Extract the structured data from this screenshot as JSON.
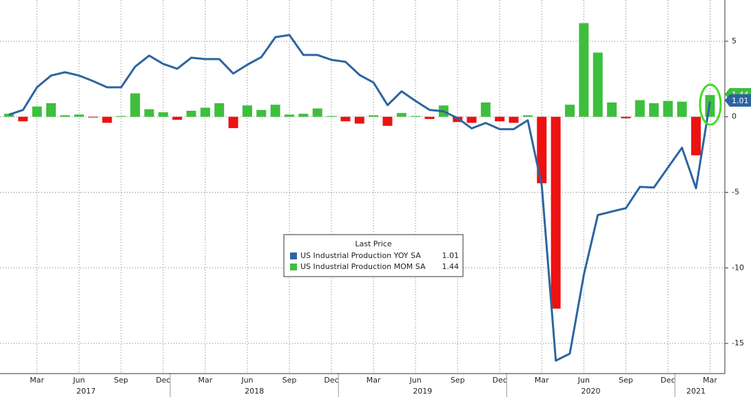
{
  "chart_data": {
    "type": "bar-line",
    "categories": [
      null,
      null,
      "Mar",
      null,
      null,
      "Jun",
      null,
      null,
      "Sep",
      null,
      null,
      "Dec",
      null,
      null,
      "Mar",
      null,
      null,
      "Jun",
      null,
      null,
      "Sep",
      null,
      null,
      "Dec",
      null,
      null,
      "Mar",
      null,
      null,
      "Jun",
      null,
      null,
      "Sep",
      null,
      null,
      "Dec",
      null,
      null,
      "Mar",
      null,
      null,
      "Jun",
      null,
      null,
      "Sep",
      null,
      null,
      "Dec",
      null,
      null,
      "Mar"
    ],
    "year_labels": [
      "2017",
      "2018",
      "2019",
      "2020",
      "2021"
    ],
    "legend_title": "Last Price",
    "series": [
      {
        "name": "US Industrial Production YOY SA",
        "type": "line",
        "color": "#2c65a0",
        "values": [
          0.14,
          0.45,
          1.95,
          2.73,
          2.95,
          2.73,
          2.36,
          1.95,
          1.95,
          3.32,
          4.05,
          3.5,
          3.18,
          3.91,
          3.82,
          3.82,
          2.86,
          3.45,
          3.95,
          5.27,
          5.41,
          4.09,
          4.09,
          3.77,
          3.64,
          2.77,
          2.27,
          0.77,
          1.68,
          1.05,
          0.45,
          0.36,
          -0.09,
          -0.77,
          -0.41,
          -0.82,
          -0.82,
          -0.23,
          -4.55,
          -16.14,
          -15.68,
          -10.45,
          -6.5,
          -6.27,
          -6.05,
          -4.64,
          -4.68,
          -3.36,
          -2.05,
          -4.73,
          1.01
        ]
      },
      {
        "name": "US Industrial Production MOM SA",
        "type": "bar",
        "color": "#3dbf3d",
        "negative_color": "#ee1111",
        "values": [
          0.2,
          -0.3,
          0.68,
          0.9,
          0.1,
          0.15,
          -0.05,
          -0.4,
          0.05,
          1.55,
          0.5,
          0.3,
          -0.2,
          0.4,
          0.6,
          0.9,
          -0.75,
          0.75,
          0.45,
          0.8,
          0.15,
          0.2,
          0.55,
          0.05,
          -0.3,
          -0.45,
          0.1,
          -0.6,
          0.25,
          0.05,
          -0.15,
          0.75,
          -0.35,
          -0.4,
          0.95,
          -0.3,
          -0.4,
          0.1,
          -4.4,
          -12.7,
          0.8,
          6.2,
          4.25,
          0.95,
          -0.1,
          1.1,
          0.9,
          1.05,
          1.0,
          -2.55,
          1.44
        ]
      }
    ],
    "ylim": [
      -17,
      7.73
    ],
    "yticks": [
      5,
      0,
      -5,
      -10,
      -15
    ],
    "grid": true
  }
}
